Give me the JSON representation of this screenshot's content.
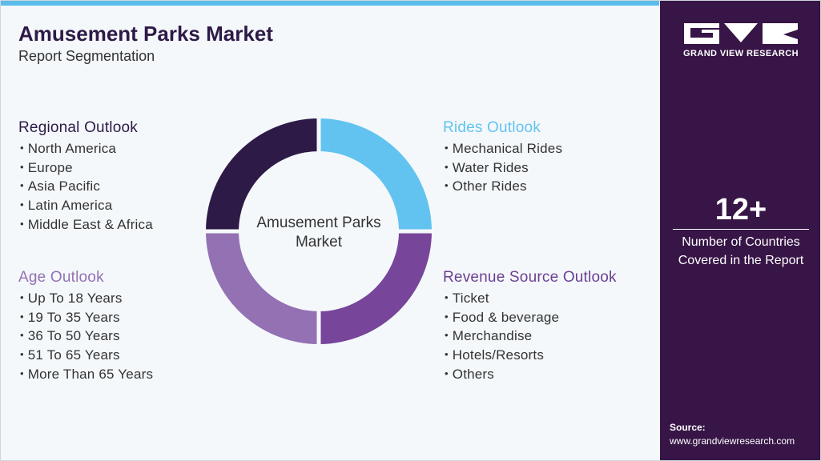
{
  "header": {
    "title": "Amusement Parks Market",
    "subtitle": "Report Segmentation"
  },
  "center_label": "Amusement Parks Market",
  "segments": [
    {
      "title": "Regional Outlook",
      "items": [
        "North America",
        "Europe",
        "Asia Pacific",
        "Latin America",
        "Middle East & Africa"
      ]
    },
    {
      "title": "Rides Outlook",
      "items": [
        "Mechanical Rides",
        "Water Rides",
        "Other Rides"
      ]
    },
    {
      "title": "Age Outlook",
      "items": [
        "Up To 18 Years",
        "19 To 35 Years",
        "36 To 50 Years",
        "51 To 65 Years",
        "More Than 65 Years"
      ]
    },
    {
      "title": "Revenue Source Outlook",
      "items": [
        "Ticket",
        "Food & beverage",
        "Merchandise",
        "Hotels/Resorts",
        "Others"
      ]
    }
  ],
  "sidebar": {
    "brand": "GRAND VIEW RESEARCH",
    "stat": "12+",
    "stat_label": "Number of Countries Covered in the Report",
    "source_label": "Source:",
    "source_url": "www.grandviewresearch.com"
  }
}
